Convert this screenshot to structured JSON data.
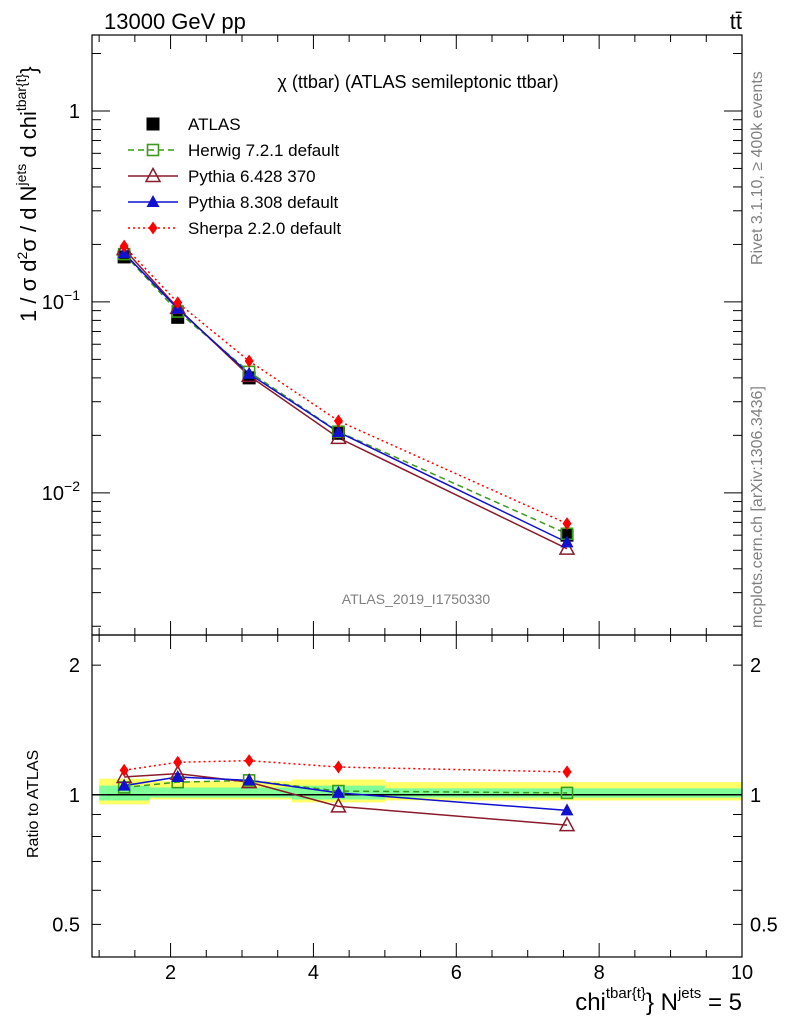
{
  "header": {
    "left": "13000 GeV pp",
    "right": "tt̄"
  },
  "side_labels": {
    "rivet": "Rivet 3.1.10, ≥ 400k events",
    "mcplots": "mcplots.cern.ch [arXiv:1306.3436]"
  },
  "chart_data": [
    {
      "type": "line",
      "panel": "main",
      "title": "χ (ttbar) (ATLAS semileptonic ttbar)",
      "watermark": "ATLAS_2019_I1750330",
      "ylabel": "1 / σ d²σ / d N^jets d chi^tbar{t}",
      "ylim": [
        0.0018,
        2.5
      ],
      "yscale": "log",
      "yticks": [
        {
          "v": 1,
          "label": "1"
        },
        {
          "v": 0.1,
          "label": "10",
          "sup": "−1"
        },
        {
          "v": 0.01,
          "label": "10",
          "sup": "−2"
        }
      ],
      "xlim": [
        0.9,
        10
      ],
      "x": [
        1.35,
        2.1,
        3.1,
        4.35,
        7.55
      ],
      "x_edges": [
        1.0,
        1.7,
        2.5,
        3.7,
        5.0,
        10.0
      ],
      "legend_position": "top-left",
      "series": [
        {
          "name": "ATLAS",
          "color": "#000000",
          "marker": "square-filled",
          "line": "none",
          "values": [
            0.172,
            0.083,
            0.04,
            0.0205,
            0.006
          ]
        },
        {
          "name": "Herwig 7.2.1 default",
          "color": "#3a9a1a",
          "marker": "square-open",
          "line": "dashed",
          "values": [
            0.178,
            0.089,
            0.043,
            0.0209,
            0.0061
          ]
        },
        {
          "name": "Pythia 6.428 370",
          "color": "#8b1a2b",
          "marker": "triangle-open",
          "line": "solid",
          "values": [
            0.189,
            0.093,
            0.041,
            0.0194,
            0.0051
          ]
        },
        {
          "name": "Pythia 8.308 default",
          "color": "#1010d0",
          "marker": "triangle-filled",
          "line": "solid",
          "values": [
            0.18,
            0.092,
            0.042,
            0.0208,
            0.0055
          ]
        },
        {
          "name": "Sherpa 2.2.0 default",
          "color": "#ff0000",
          "marker": "diamond-filled",
          "line": "dotted",
          "values": [
            0.196,
            0.099,
            0.049,
            0.0238,
            0.0069
          ]
        }
      ]
    },
    {
      "type": "line",
      "panel": "ratio",
      "ylabel": "Ratio to ATLAS",
      "ylim": [
        0.42,
        2.35
      ],
      "yscale": "log",
      "yticks": [
        {
          "v": 0.5,
          "label": "0.5"
        },
        {
          "v": 1,
          "label": "1"
        },
        {
          "v": 2,
          "label": "2"
        }
      ],
      "xlabel": "chi^tbar{t} N^jets = 5",
      "xlim": [
        0.9,
        10
      ],
      "xticks": [
        2,
        4,
        6,
        8,
        10
      ],
      "x": [
        1.35,
        2.1,
        3.1,
        4.35,
        7.55
      ],
      "uncertainty_bands": [
        {
          "x_range": [
            1.0,
            1.7
          ],
          "outer": [
            0.95,
            1.09
          ],
          "inner": [
            0.97,
            1.05
          ]
        },
        {
          "x_range": [
            1.7,
            3.7
          ],
          "outer": [
            0.975,
            1.075
          ],
          "inner": [
            0.985,
            1.04
          ]
        },
        {
          "x_range": [
            3.7,
            5.0
          ],
          "outer": [
            0.96,
            1.085
          ],
          "inner": [
            0.975,
            1.05
          ]
        },
        {
          "x_range": [
            5.0,
            10.0
          ],
          "outer": [
            0.97,
            1.07
          ],
          "inner": [
            0.985,
            1.035
          ]
        }
      ],
      "series": [
        {
          "name": "Herwig 7.2.1 default",
          "color": "#3a9a1a",
          "marker": "square-open",
          "line": "dashed",
          "values": [
            1.04,
            1.07,
            1.08,
            1.02,
            1.01
          ]
        },
        {
          "name": "Pythia 6.428 370",
          "color": "#8b1a2b",
          "marker": "triangle-open",
          "line": "solid",
          "values": [
            1.1,
            1.12,
            1.07,
            0.94,
            0.85
          ]
        },
        {
          "name": "Pythia 8.308 default",
          "color": "#1010d0",
          "marker": "triangle-filled",
          "line": "solid",
          "values": [
            1.05,
            1.1,
            1.08,
            1.01,
            0.92
          ]
        },
        {
          "name": "Sherpa 2.2.0 default",
          "color": "#ff0000",
          "marker": "diamond-filled",
          "line": "dotted",
          "values": [
            1.14,
            1.19,
            1.2,
            1.16,
            1.13
          ]
        }
      ]
    }
  ]
}
